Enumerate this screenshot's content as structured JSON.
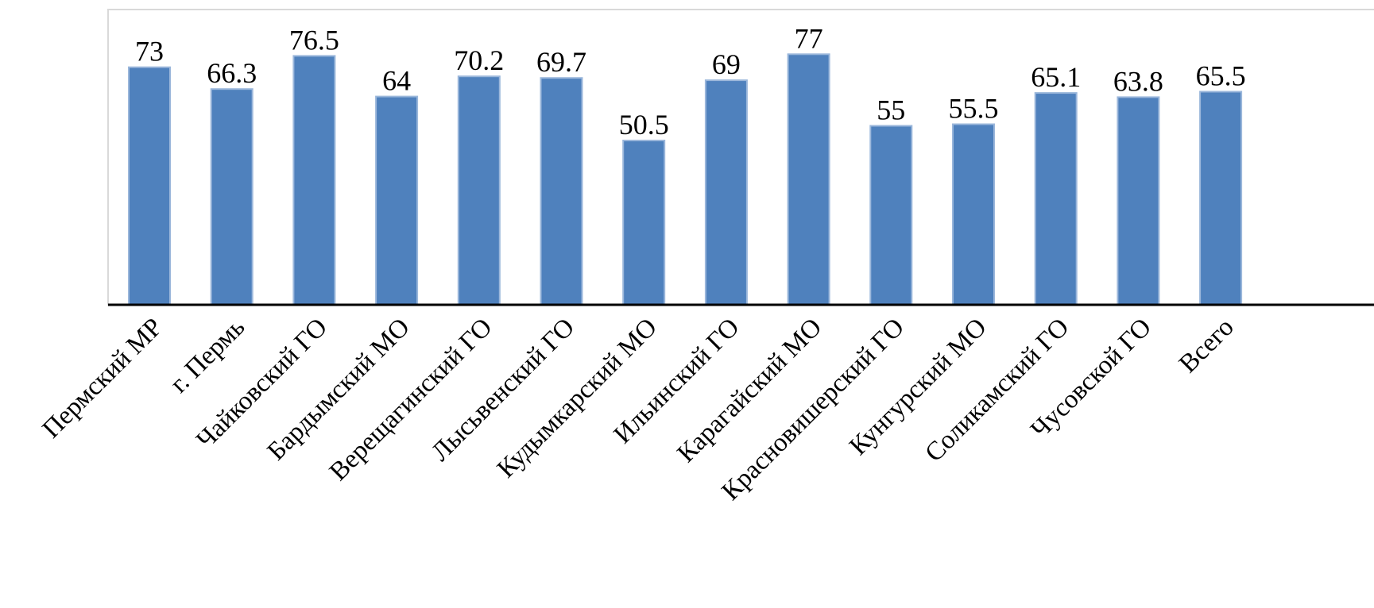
{
  "chart_data": {
    "type": "bar",
    "categories": [
      "Пермский МР",
      "г. Пермь",
      "Чайковский ГО",
      "Бардымский МО",
      "Верещагинский ГО",
      "Лысьвенский ГО",
      "Кудымкарский МО",
      "Ильинский ГО",
      "Карагайский МО",
      "Красновишерский ГО",
      "Кунгурский МО",
      "Соликамский ГО",
      "Чусовской ГО",
      "Всего"
    ],
    "values": [
      73,
      66.3,
      76.5,
      64,
      70.2,
      69.7,
      50.5,
      69,
      77,
      55,
      55.5,
      65.1,
      63.8,
      65.5
    ],
    "value_labels": [
      "73",
      "66.3",
      "76.5",
      "64",
      "70.2",
      "69.7",
      "50.5",
      "69",
      "77",
      "55",
      "55.5",
      "65.1",
      "63.8",
      "65.5"
    ],
    "ylim": [
      0,
      90
    ],
    "title": "",
    "xlabel": "",
    "ylabel": "",
    "grid": false,
    "legend": "none",
    "colors": {
      "bar_fill": "#4f81bd",
      "bar_stroke": "#9bb7db",
      "axis": "#000000",
      "frame": "#d9d9d9"
    }
  }
}
